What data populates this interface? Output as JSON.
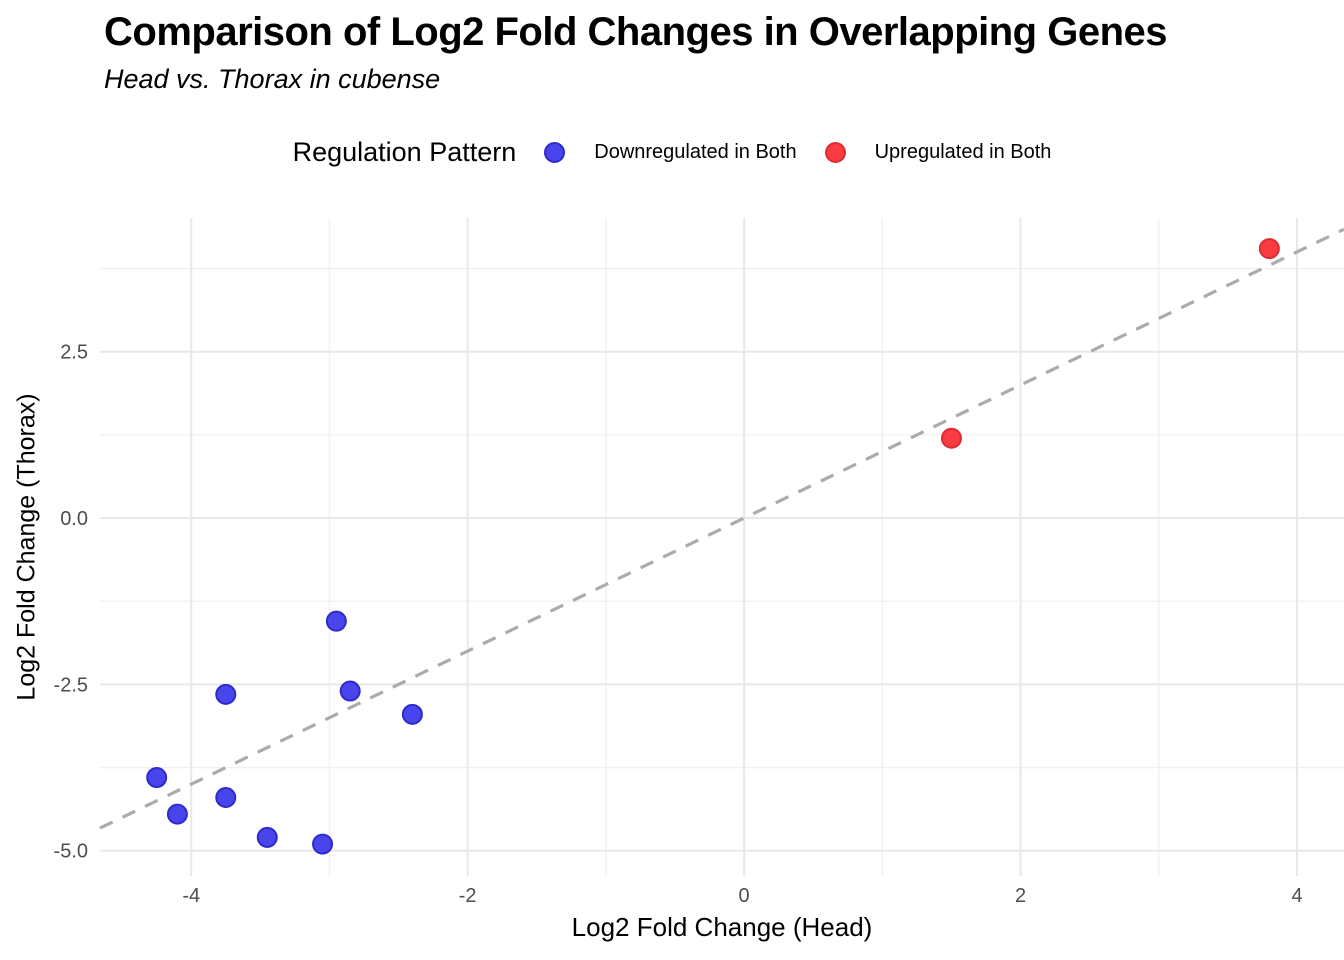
{
  "chart_data": {
    "type": "scatter",
    "title": "Comparison of Log2 Fold Changes in Overlapping Genes",
    "subtitle": "Head vs. Thorax in cubense",
    "xlabel": "Log2 Fold Change (Head)",
    "ylabel": "Log2 Fold Change (Thorax)",
    "legend_title": "Regulation Pattern",
    "legend_position": "top",
    "grid": true,
    "xlim": [
      -4.66,
      4.34
    ],
    "ylim": [
      -5.38,
      4.51
    ],
    "x_ticks": [
      -4,
      -2,
      0,
      2,
      4
    ],
    "x_tick_labels": [
      "-4",
      "-2",
      "0",
      "2",
      "4"
    ],
    "y_ticks": [
      2.5,
      0.0,
      -2.5,
      -5.0
    ],
    "y_tick_labels": [
      "2.5",
      "0.0",
      "-2.5",
      "-5.0"
    ],
    "x_minor_ticks": [
      -3,
      -1,
      1,
      3
    ],
    "y_minor_ticks": [
      3.75,
      1.25,
      -1.25,
      -3.75
    ],
    "series": [
      {
        "name": "Downregulated in Both",
        "fill_color": "#4845EC",
        "stroke_color": "#2D2BC9",
        "points": [
          [
            -4.25,
            -3.9
          ],
          [
            -4.1,
            -4.45
          ],
          [
            -3.75,
            -4.2
          ],
          [
            -3.75,
            -2.65
          ],
          [
            -3.45,
            -4.8
          ],
          [
            -3.05,
            -4.9
          ],
          [
            -2.95,
            -1.55
          ],
          [
            -2.85,
            -2.6
          ],
          [
            -2.4,
            -2.95
          ]
        ]
      },
      {
        "name": "Upregulated in Both",
        "fill_color": "#F93C41",
        "stroke_color": "#DD2C33",
        "points": [
          [
            1.5,
            1.2
          ],
          [
            3.8,
            4.05
          ]
        ]
      }
    ],
    "reference_line": {
      "type": "identity",
      "slope": 1,
      "intercept": 0,
      "style": "dashed",
      "color": "#ABABAB"
    },
    "colors": {
      "grid_major": "#E8E8E8",
      "grid_minor": "#F0F0F0",
      "tick_text": "#4D4D4D",
      "background": "#FFFFFF"
    }
  }
}
